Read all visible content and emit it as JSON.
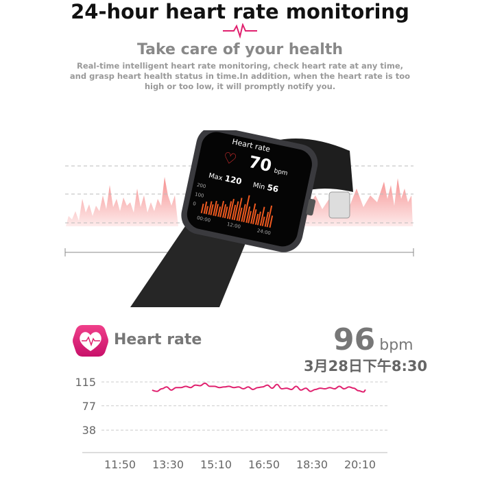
{
  "header": {
    "title": "24-hour heart rate monitoring",
    "subtitle": "Take care of your health",
    "description": "Real-time intelligent heart rate monitoring, check heart rate at any time, and grasp heart health status in time.In addition, when the heart rate is too high or too low, it will promptly notify you."
  },
  "watch": {
    "screen_title": "Heart rate",
    "current": "70",
    "unit": "bpm",
    "max_label": "Max",
    "max": "120",
    "min_label": "Min",
    "min": "56",
    "y_ticks": [
      "200",
      "100",
      "0"
    ],
    "x_ticks": [
      "00:00",
      "12:00",
      "24:00"
    ]
  },
  "colors": {
    "accent": "#e0206e",
    "watch_bars": "#f05a20",
    "background_wave": "#f7a0a0"
  },
  "card": {
    "title": "Heart rate",
    "value": "96",
    "unit": "bpm",
    "datetime": "3月28日下午8:30",
    "icon": "heart-pulse-icon"
  },
  "chart_data": {
    "type": "line",
    "y_ticks": [
      "115",
      "77",
      "38"
    ],
    "ylim": [
      0,
      115
    ],
    "x_ticks": [
      "11:50",
      "13:30",
      "15:10",
      "16:50",
      "18:30",
      "20:10"
    ],
    "grid": "dashed horizontal",
    "series": [
      {
        "x": [
          "12:57",
          "13:07",
          "13:17",
          "13:27",
          "13:37",
          "13:47",
          "13:57",
          "14:07",
          "14:17",
          "14:27",
          "14:37",
          "14:47",
          "14:57",
          "15:07",
          "15:17",
          "15:27",
          "15:37",
          "15:47",
          "15:57",
          "16:07",
          "16:17",
          "16:27",
          "16:37",
          "16:47",
          "16:57",
          "17:07",
          "17:17",
          "17:27",
          "17:37",
          "17:47",
          "17:57",
          "18:07",
          "18:17",
          "18:27",
          "18:37",
          "18:47",
          "18:57",
          "19:07",
          "19:17",
          "19:27",
          "19:37",
          "19:47",
          "19:57",
          "20:07",
          "20:17",
          "20:22"
        ],
        "values": [
          102,
          100,
          104,
          107,
          102,
          106,
          106,
          108,
          106,
          110,
          109,
          113,
          108,
          108,
          106,
          107,
          108,
          106,
          107,
          104,
          107,
          103,
          106,
          107,
          110,
          105,
          111,
          104,
          105,
          103,
          108,
          102,
          105,
          100,
          103,
          105,
          104,
          106,
          104,
          108,
          104,
          107,
          105,
          101,
          99,
          102
        ]
      }
    ]
  }
}
